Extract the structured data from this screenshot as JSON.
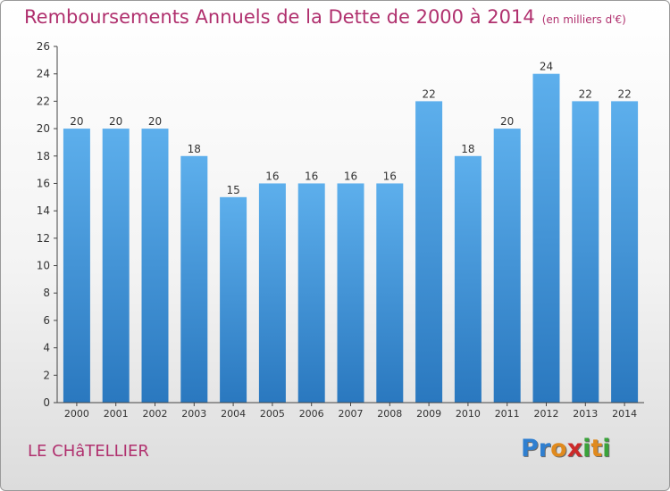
{
  "chart_data": {
    "type": "bar",
    "title": "Remboursements Annuels de la Dette de 2000 à 2014",
    "unit_label": "(en milliers d'€)",
    "categories": [
      "2000",
      "2001",
      "2002",
      "2003",
      "2004",
      "2005",
      "2006",
      "2007",
      "2008",
      "2009",
      "2010",
      "2011",
      "2012",
      "2013",
      "2014"
    ],
    "values": [
      20,
      20,
      20,
      18,
      15,
      16,
      16,
      16,
      16,
      22,
      18,
      20,
      24,
      22,
      22
    ],
    "ylim": [
      0,
      26
    ],
    "yticks": [
      0,
      2,
      4,
      6,
      8,
      10,
      12,
      14,
      16,
      18,
      20,
      22,
      24,
      26
    ],
    "xlabel": "",
    "ylabel": "",
    "grid": false
  },
  "footer": {
    "city": "LE CHâTELLIER",
    "logo_letters": [
      "P",
      "r",
      "o",
      "x",
      "i",
      "t",
      "i"
    ],
    "logo_colors": [
      "#2f7fd0",
      "#2f7fd0",
      "#e08a1e",
      "#cc2a2a",
      "#3aa33a",
      "#e08a1e",
      "#3aa33a"
    ]
  },
  "colors": {
    "title": "#b0306e",
    "bar_top": "#5dafec",
    "bar_bottom": "#2a78bf",
    "axis": "#444444"
  }
}
